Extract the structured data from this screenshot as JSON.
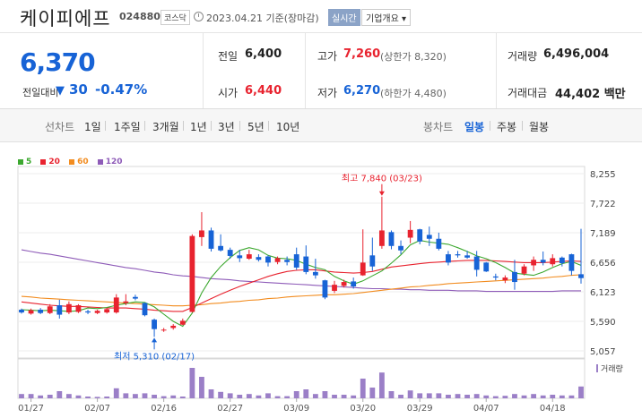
{
  "header": {
    "stock_name": "케이피에프",
    "code": "024880",
    "market": "코스닥",
    "date_info": "2023.04.21 기준(장마감)",
    "realtime_label": "실시간",
    "company_info_label": "기업개요 ▾"
  },
  "summary": {
    "current_price": "6,370",
    "change_label": "전일대비",
    "change_symbol": "▼",
    "change_value": "30",
    "change_pct": "-0.47%",
    "prev_close_label": "전일",
    "prev_close": "6,400",
    "high_label": "고가",
    "high": "7,260",
    "upper_limit": "(상한가 8,320)",
    "volume_label": "거래량",
    "volume": "6,496,004",
    "open_label": "시가",
    "open": "6,440",
    "low_label": "저가",
    "low": "6,270",
    "lower_limit": "(하한가 4,480)",
    "trade_value_label": "거래대금",
    "trade_value": "44,402 백만"
  },
  "periods": {
    "line_chart_label": "선차트",
    "items": [
      "1일",
      "1주일",
      "3개월",
      "1년",
      "3년",
      "5년",
      "10년"
    ],
    "candle_chart_label": "봉차트",
    "candle_items": [
      "일봉",
      "주봉",
      "월봉"
    ],
    "candle_active": "일봉"
  },
  "colors": {
    "up": "#e8232f",
    "down": "#1763d6",
    "ma5": "#3ca82f",
    "ma20": "#e8232f",
    "ma60": "#f28c1f",
    "ma120": "#8e5bb8",
    "volume": "#9b7fc7"
  },
  "chart_data": {
    "type": "candlestick",
    "legend": [
      "5",
      "20",
      "60",
      "120"
    ],
    "ylim": [
      5057,
      8255
    ],
    "y_ticks": [
      "8,255",
      "7,722",
      "7,189",
      "6,656",
      "6,123",
      "5,590",
      "5,057"
    ],
    "x_ticks": [
      "01/27",
      "02/07",
      "02/16",
      "02/27",
      "03/09",
      "03/20",
      "03/29",
      "04/07",
      "04/18"
    ],
    "x_tick_index": [
      1,
      8,
      15,
      22,
      29,
      36,
      42,
      49,
      56
    ],
    "volume_label": "거래량",
    "annotations": {
      "high": {
        "text": "최고 7,840 (03/23)",
        "index": 38,
        "value": 7840
      },
      "low": {
        "text": "최저 5,310 (02/17)",
        "index": 14,
        "value": 5310
      }
    },
    "candles": [
      {
        "o": 5800,
        "h": 5820,
        "l": 5730,
        "c": 5750
      },
      {
        "o": 5730,
        "h": 5820,
        "l": 5710,
        "c": 5790
      },
      {
        "o": 5800,
        "h": 5830,
        "l": 5720,
        "c": 5740
      },
      {
        "o": 5740,
        "h": 5900,
        "l": 5720,
        "c": 5860
      },
      {
        "o": 5880,
        "h": 5980,
        "l": 5640,
        "c": 5710
      },
      {
        "o": 5750,
        "h": 5950,
        "l": 5720,
        "c": 5900
      },
      {
        "o": 5760,
        "h": 5900,
        "l": 5740,
        "c": 5880
      },
      {
        "o": 5770,
        "h": 5800,
        "l": 5720,
        "c": 5750
      },
      {
        "o": 5740,
        "h": 5800,
        "l": 5720,
        "c": 5780
      },
      {
        "o": 5750,
        "h": 5830,
        "l": 5730,
        "c": 5810
      },
      {
        "o": 5750,
        "h": 6080,
        "l": 5730,
        "c": 6020
      },
      {
        "o": 5920,
        "h": 6080,
        "l": 5880,
        "c": 5950
      },
      {
        "o": 6030,
        "h": 6070,
        "l": 5970,
        "c": 6000
      },
      {
        "o": 5920,
        "h": 5930,
        "l": 5680,
        "c": 5700
      },
      {
        "o": 5620,
        "h": 5640,
        "l": 5310,
        "c": 5450
      },
      {
        "o": 5430,
        "h": 5470,
        "l": 5400,
        "c": 5440
      },
      {
        "o": 5470,
        "h": 5540,
        "l": 5440,
        "c": 5510
      },
      {
        "o": 5530,
        "h": 5640,
        "l": 5520,
        "c": 5600
      },
      {
        "o": 5760,
        "h": 7160,
        "l": 5750,
        "c": 7130
      },
      {
        "o": 7110,
        "h": 7560,
        "l": 6950,
        "c": 7230
      },
      {
        "o": 7230,
        "h": 7280,
        "l": 6850,
        "c": 6900
      },
      {
        "o": 6950,
        "h": 7160,
        "l": 6850,
        "c": 6870
      },
      {
        "o": 6880,
        "h": 6920,
        "l": 6720,
        "c": 6770
      },
      {
        "o": 6780,
        "h": 6880,
        "l": 6660,
        "c": 6730
      },
      {
        "o": 6720,
        "h": 6880,
        "l": 6700,
        "c": 6800
      },
      {
        "o": 6750,
        "h": 6800,
        "l": 6670,
        "c": 6700
      },
      {
        "o": 6760,
        "h": 6780,
        "l": 6580,
        "c": 6650
      },
      {
        "o": 6660,
        "h": 6760,
        "l": 6620,
        "c": 6730
      },
      {
        "o": 6700,
        "h": 6760,
        "l": 6600,
        "c": 6660
      },
      {
        "o": 6800,
        "h": 6920,
        "l": 6520,
        "c": 6560
      },
      {
        "o": 6760,
        "h": 6960,
        "l": 6440,
        "c": 6480
      },
      {
        "o": 6480,
        "h": 6720,
        "l": 6360,
        "c": 6420
      },
      {
        "o": 6330,
        "h": 6340,
        "l": 5990,
        "c": 6020
      },
      {
        "o": 6140,
        "h": 6320,
        "l": 6100,
        "c": 6250
      },
      {
        "o": 6230,
        "h": 6340,
        "l": 6200,
        "c": 6300
      },
      {
        "o": 6310,
        "h": 6380,
        "l": 6180,
        "c": 6220
      },
      {
        "o": 6420,
        "h": 7250,
        "l": 6410,
        "c": 6650
      },
      {
        "o": 6780,
        "h": 7100,
        "l": 6500,
        "c": 6580
      },
      {
        "o": 6950,
        "h": 7840,
        "l": 6900,
        "c": 7230
      },
      {
        "o": 7200,
        "h": 7230,
        "l": 6890,
        "c": 6950
      },
      {
        "o": 6950,
        "h": 7050,
        "l": 6800,
        "c": 6870
      },
      {
        "o": 7100,
        "h": 7400,
        "l": 7000,
        "c": 7240
      },
      {
        "o": 7250,
        "h": 7260,
        "l": 6980,
        "c": 7030
      },
      {
        "o": 7150,
        "h": 7300,
        "l": 6950,
        "c": 7080
      },
      {
        "o": 7080,
        "h": 7190,
        "l": 6870,
        "c": 6900
      },
      {
        "o": 6800,
        "h": 6860,
        "l": 6600,
        "c": 6650
      },
      {
        "o": 6800,
        "h": 6860,
        "l": 6740,
        "c": 6780
      },
      {
        "o": 6780,
        "h": 6860,
        "l": 6720,
        "c": 6740
      },
      {
        "o": 6760,
        "h": 6860,
        "l": 6400,
        "c": 6520
      },
      {
        "o": 6650,
        "h": 6660,
        "l": 6480,
        "c": 6490
      },
      {
        "o": 6400,
        "h": 6450,
        "l": 6330,
        "c": 6380
      },
      {
        "o": 6330,
        "h": 6420,
        "l": 6280,
        "c": 6380
      },
      {
        "o": 6480,
        "h": 6700,
        "l": 6160,
        "c": 6300
      },
      {
        "o": 6450,
        "h": 6620,
        "l": 6420,
        "c": 6580
      },
      {
        "o": 6600,
        "h": 6760,
        "l": 6500,
        "c": 6700
      },
      {
        "o": 6700,
        "h": 6850,
        "l": 6600,
        "c": 6650
      },
      {
        "o": 6620,
        "h": 6800,
        "l": 6580,
        "c": 6730
      },
      {
        "o": 6740,
        "h": 6760,
        "l": 6580,
        "c": 6640
      },
      {
        "o": 6800,
        "h": 6810,
        "l": 6420,
        "c": 6500
      },
      {
        "o": 6440,
        "h": 7260,
        "l": 6270,
        "c": 6370
      }
    ],
    "ma5": [
      5800,
      5790,
      5780,
      5790,
      5780,
      5770,
      5780,
      5830,
      5820,
      5840,
      5880,
      5910,
      5940,
      5930,
      5850,
      5720,
      5590,
      5500,
      5740,
      6100,
      6380,
      6580,
      6740,
      6870,
      6920,
      6880,
      6780,
      6730,
      6720,
      6690,
      6620,
      6560,
      6520,
      6400,
      6320,
      6260,
      6320,
      6410,
      6500,
      6640,
      6790,
      6970,
      7050,
      7020,
      7000,
      6980,
      6920,
      6850,
      6770,
      6720,
      6650,
      6560,
      6460,
      6440,
      6420,
      6480,
      6560,
      6630,
      6670,
      6600
    ],
    "ma20": [
      5940,
      5920,
      5900,
      5880,
      5870,
      5860,
      5860,
      5850,
      5840,
      5830,
      5830,
      5830,
      5820,
      5810,
      5790,
      5780,
      5770,
      5770,
      5840,
      5920,
      6000,
      6080,
      6150,
      6220,
      6280,
      6340,
      6400,
      6450,
      6490,
      6510,
      6520,
      6520,
      6500,
      6480,
      6470,
      6460,
      6470,
      6490,
      6530,
      6570,
      6590,
      6610,
      6630,
      6650,
      6660,
      6670,
      6680,
      6690,
      6690,
      6690,
      6680,
      6670,
      6660,
      6650,
      6650,
      6650,
      6660,
      6670,
      6680,
      6670
    ],
    "ma60": [
      6040,
      6030,
      6010,
      6000,
      5990,
      5980,
      5970,
      5960,
      5950,
      5940,
      5930,
      5920,
      5910,
      5900,
      5890,
      5880,
      5870,
      5870,
      5880,
      5890,
      5910,
      5920,
      5940,
      5950,
      5970,
      5980,
      6000,
      6010,
      6030,
      6040,
      6050,
      6060,
      6070,
      6070,
      6080,
      6090,
      6110,
      6130,
      6150,
      6170,
      6190,
      6210,
      6220,
      6240,
      6250,
      6270,
      6280,
      6290,
      6300,
      6310,
      6320,
      6330,
      6340,
      6350,
      6360,
      6370,
      6390,
      6400,
      6420,
      6430
    ],
    "ma120": [
      6880,
      6850,
      6820,
      6800,
      6770,
      6740,
      6710,
      6680,
      6650,
      6620,
      6590,
      6560,
      6540,
      6510,
      6480,
      6460,
      6430,
      6410,
      6400,
      6380,
      6360,
      6350,
      6340,
      6320,
      6310,
      6300,
      6290,
      6280,
      6270,
      6260,
      6250,
      6240,
      6230,
      6220,
      6210,
      6200,
      6190,
      6180,
      6180,
      6170,
      6170,
      6160,
      6160,
      6150,
      6150,
      6150,
      6140,
      6140,
      6140,
      6130,
      6130,
      6130,
      6130,
      6130,
      6130,
      6130,
      6130,
      6140,
      6140,
      6140
    ],
    "volume": [
      0.12,
      0.12,
      0.08,
      0.1,
      0.2,
      0.12,
      0.08,
      0.05,
      0.04,
      0.05,
      0.28,
      0.14,
      0.12,
      0.14,
      0.1,
      0.06,
      0.08,
      0.05,
      0.85,
      0.6,
      0.25,
      0.18,
      0.14,
      0.1,
      0.12,
      0.08,
      0.14,
      0.06,
      0.06,
      0.2,
      0.25,
      0.12,
      0.2,
      0.1,
      0.1,
      0.08,
      0.55,
      0.3,
      0.72,
      0.2,
      0.1,
      0.22,
      0.14,
      0.14,
      0.14,
      0.1,
      0.12,
      0.1,
      0.12,
      0.08,
      0.06,
      0.07,
      0.12,
      0.08,
      0.12,
      0.08,
      0.1,
      0.08,
      0.08,
      0.33
    ]
  }
}
